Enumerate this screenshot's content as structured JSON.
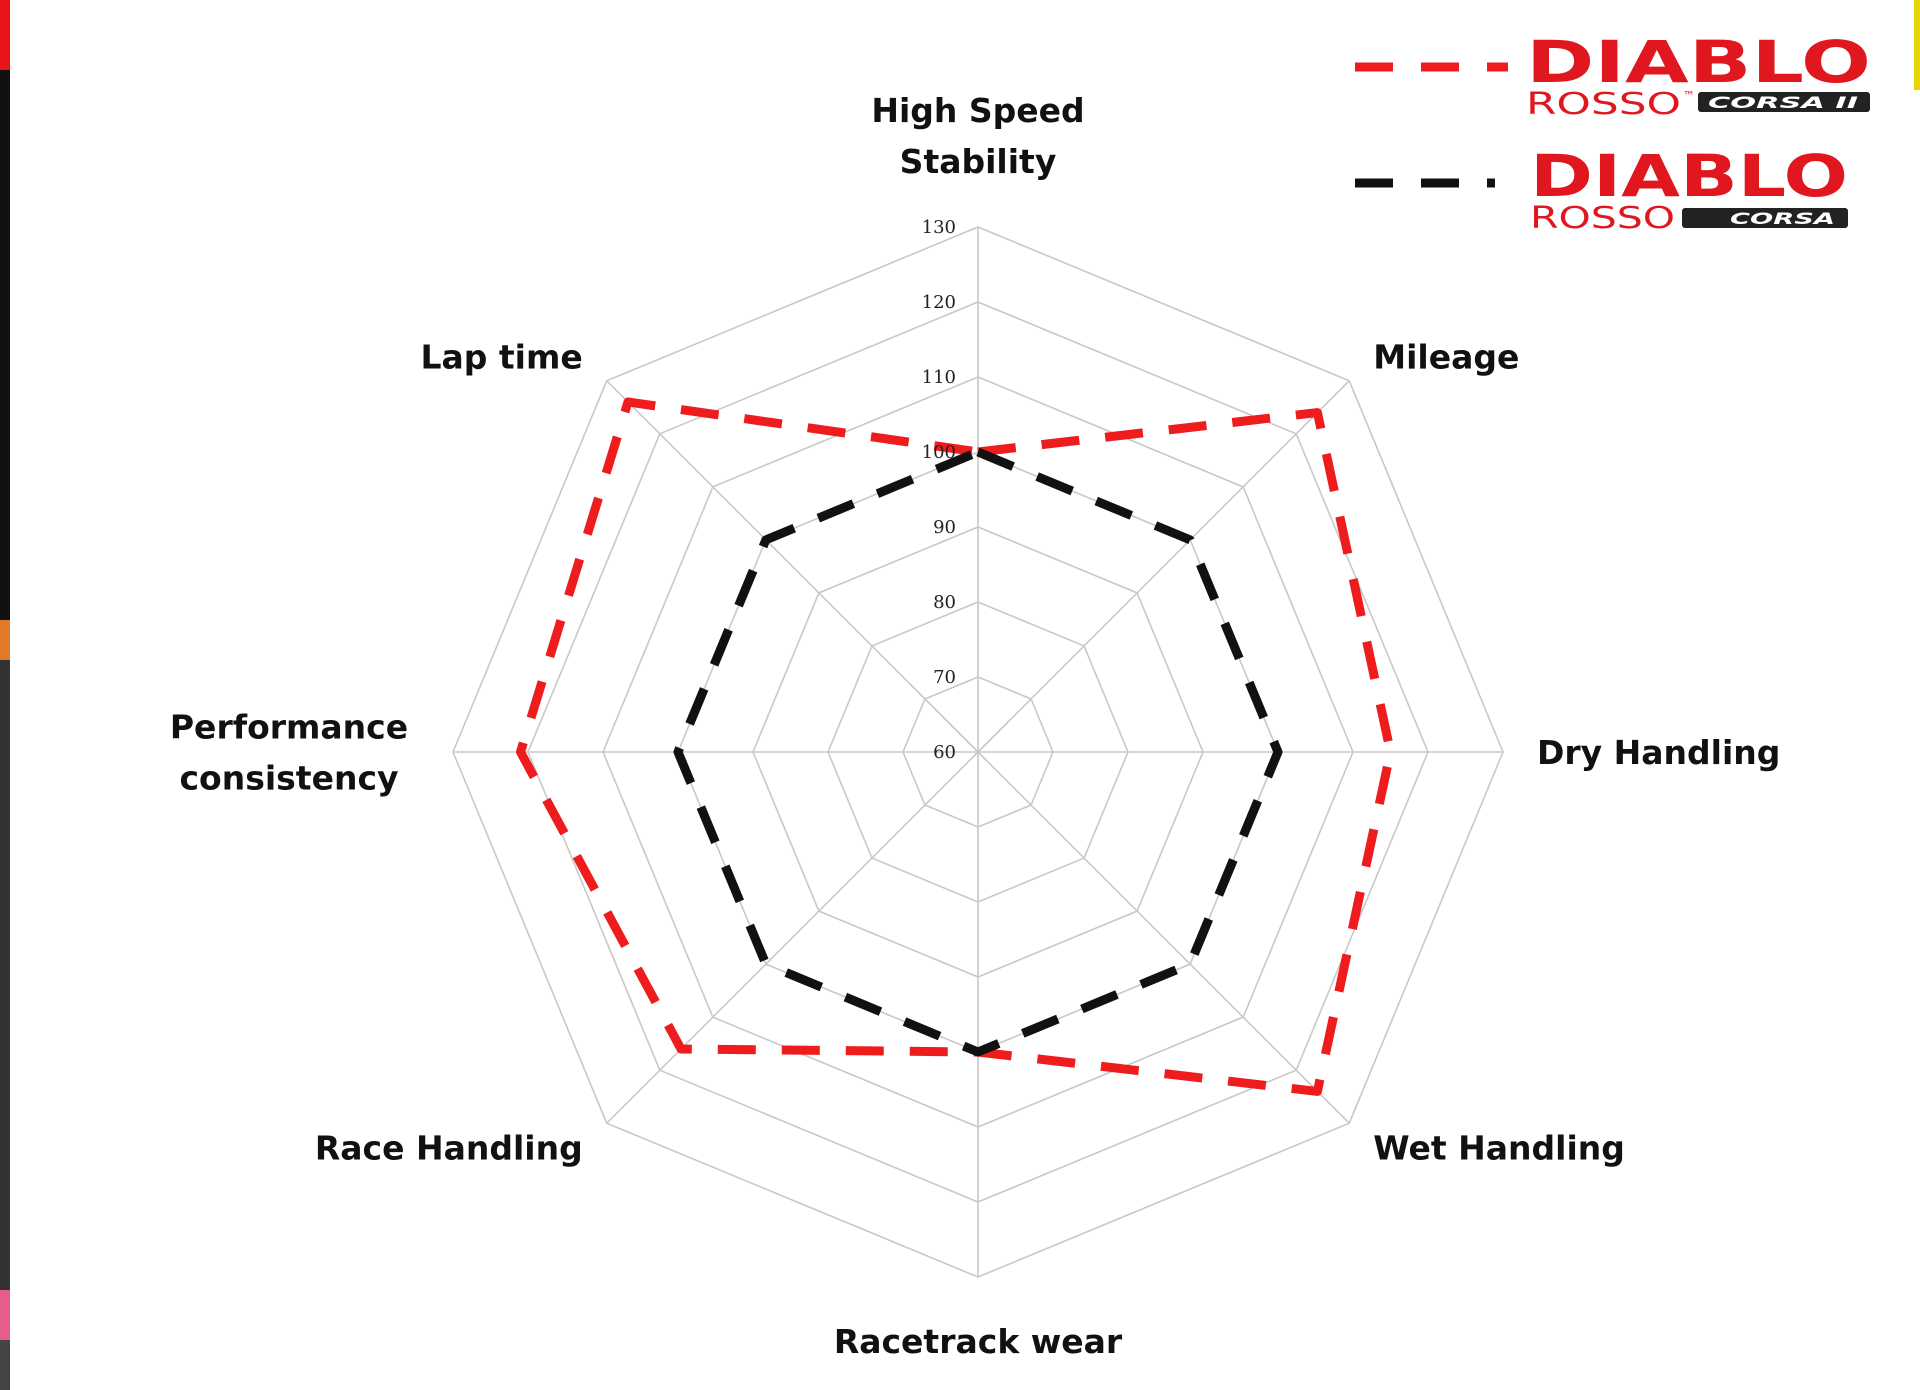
{
  "chart_data": {
    "type": "radar",
    "axes": [
      "High Speed Stability",
      "Mileage",
      "Dry Handling",
      "Wet Handling",
      "Racetrack wear",
      "Race Handling",
      "Performance consistency",
      "Lap time"
    ],
    "axis_label_lines": [
      [
        "High Speed",
        "Stability"
      ],
      [
        "Mileage"
      ],
      [
        "Dry Handling"
      ],
      [
        "Wet Handling"
      ],
      [
        "Racetrack wear"
      ],
      [
        "Race Handling"
      ],
      [
        "Performance",
        "consistency"
      ],
      [
        "Lap time"
      ]
    ],
    "ticks": [
      60,
      70,
      80,
      90,
      100,
      110,
      120,
      130
    ],
    "tick_labels": [
      "60",
      "70",
      "80",
      "90",
      "100",
      "110",
      "120",
      "130"
    ],
    "range": [
      60,
      130
    ],
    "grid": true,
    "legend_position": "top-right",
    "series": [
      {
        "name": "DIABLO ROSSO CORSA II",
        "values": [
          100,
          124,
          115,
          124,
          100,
          116,
          121,
          126
        ],
        "color": "#ee1c1c",
        "line_style": "dashed"
      },
      {
        "name": "DIABLO ROSSO CORSA",
        "values": [
          100,
          100,
          100,
          100,
          100,
          100,
          100,
          100
        ],
        "color": "#111111",
        "line_style": "dashed"
      }
    ]
  },
  "legend": {
    "items": [
      {
        "brand": "DIABLO",
        "sub": "ROSSO",
        "tm": "™",
        "tag": "CORSA II",
        "color": "#ee1c1c"
      },
      {
        "brand": "DIABLO",
        "sub": "ROSSO",
        "tm": "",
        "tag": "CORSA",
        "color": "#111111"
      }
    ]
  },
  "colors": {
    "grid": "#c8c8c8",
    "brand_red": "#e0171f",
    "tag_bg": "#222222"
  }
}
